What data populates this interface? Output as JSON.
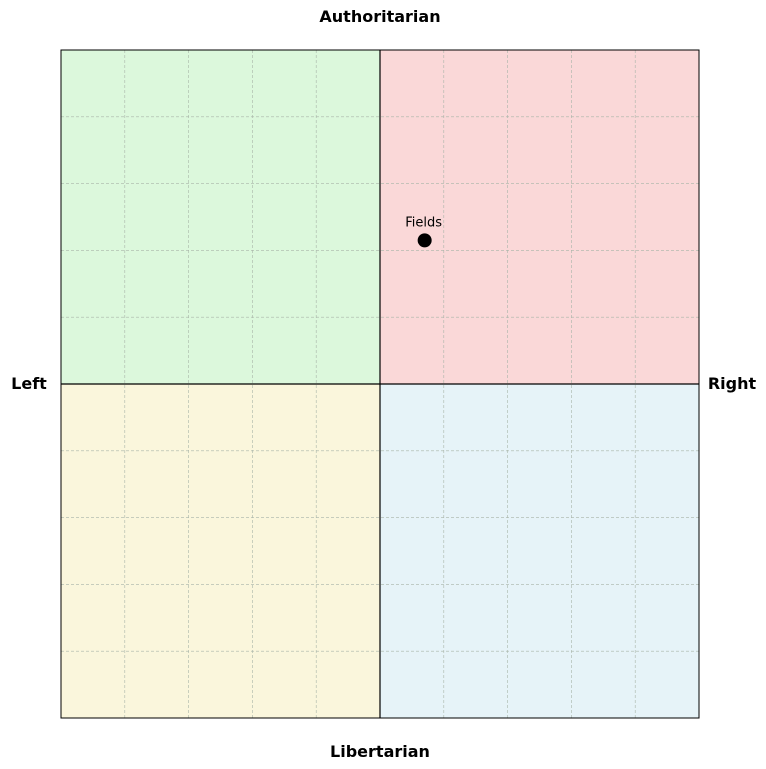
{
  "chart_data": {
    "type": "scatter",
    "title": "",
    "xlabel": "",
    "ylabel": "",
    "xlim": [
      -10,
      10
    ],
    "ylim": [
      -10,
      10
    ],
    "grid": true,
    "grid_step": 2,
    "axis_labels": {
      "top": "Authoritarian",
      "bottom": "Libertarian",
      "left": "Left",
      "right": "Right"
    },
    "quadrants": {
      "top_left_color": "#dcf8dc",
      "top_right_color": "#fad8d8",
      "bottom_left_color": "#faf6dc",
      "bottom_right_color": "#e6f3f8"
    },
    "points": [
      {
        "label": "Fields",
        "x": 1.4,
        "y": 4.3,
        "color": "#000000"
      }
    ]
  }
}
